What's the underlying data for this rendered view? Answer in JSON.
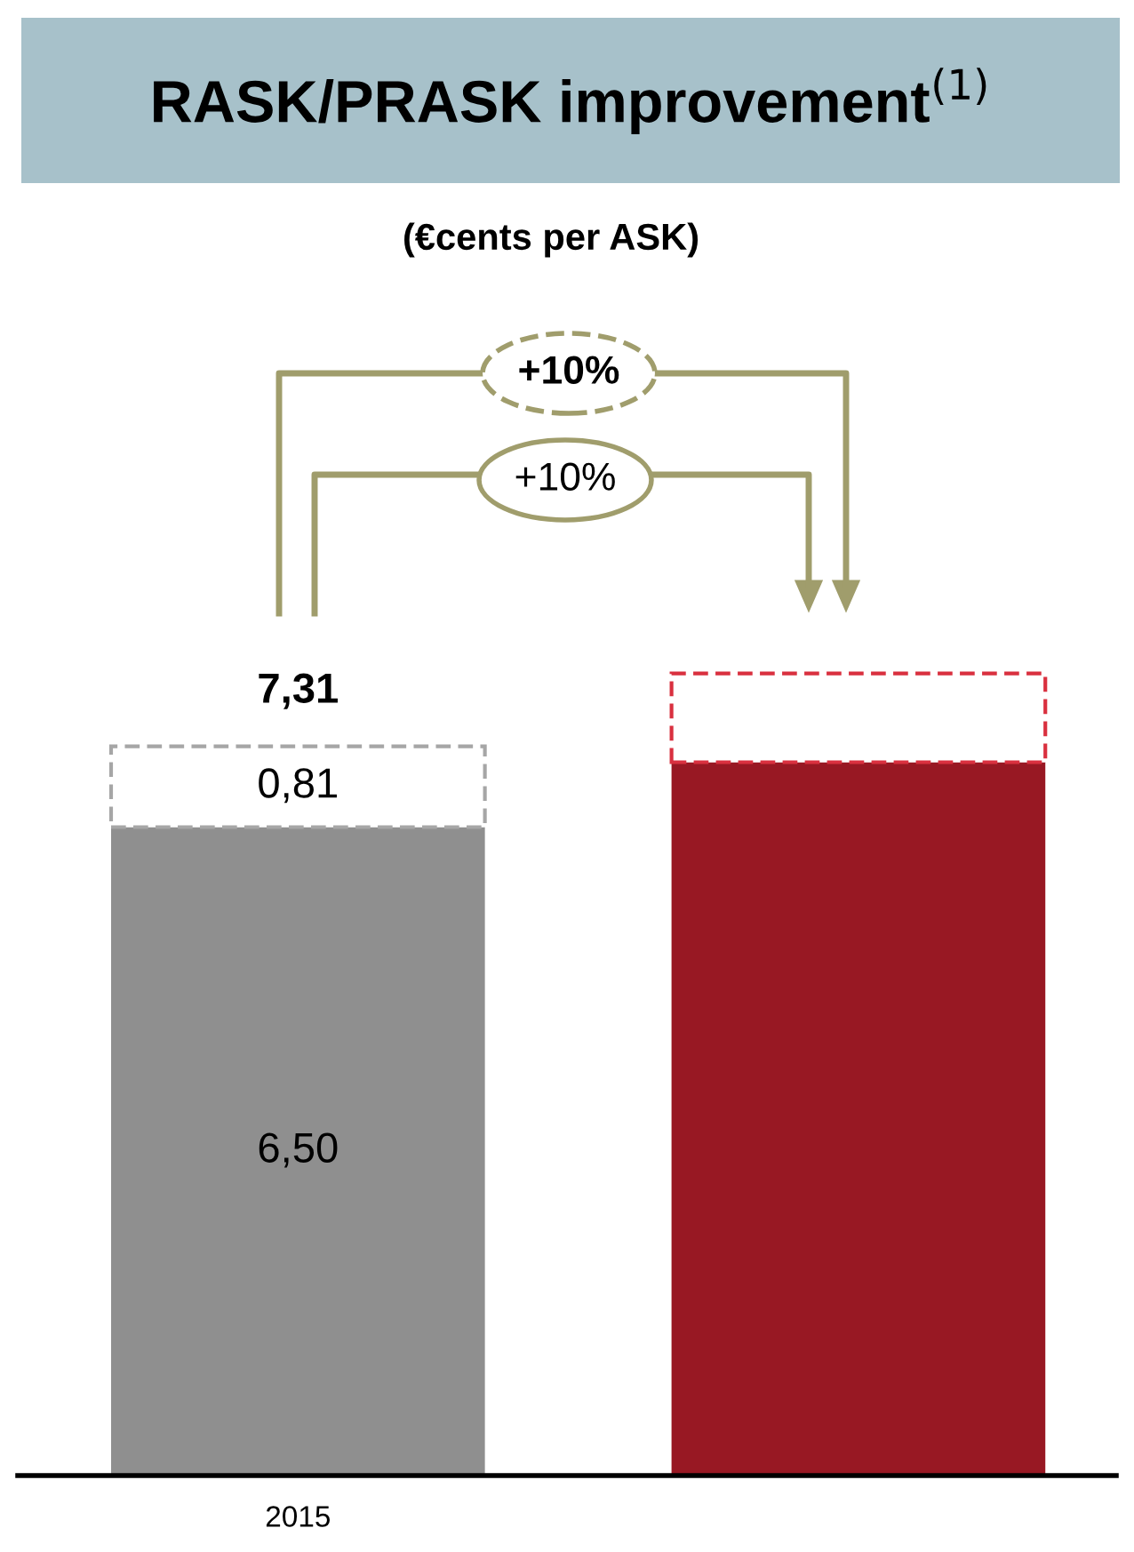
{
  "chart_data": {
    "type": "bar",
    "title": "RASK/PRASK improvement$^{(1)}$",
    "subtitle": "(€cents per ASK)",
    "categories": [
      "2015",
      null
    ],
    "stacked": true,
    "series": [
      {
        "colors": [
          "#8f8f8f",
          "#981823"
        ],
        "values": [
          6.5,
          7.15
        ],
        "value_labels": [
          "6,50",
          null
        ]
      },
      {
        "colors": [
          "#a6a6a6",
          "#d9303f"
        ],
        "line_style": "dashed",
        "values": [
          0.81,
          0.89
        ],
        "value_labels": [
          "0,81",
          null
        ]
      }
    ],
    "totals": [
      "7,31",
      null
    ],
    "annotations": [
      "+10%",
      "+10%"
    ]
  }
}
